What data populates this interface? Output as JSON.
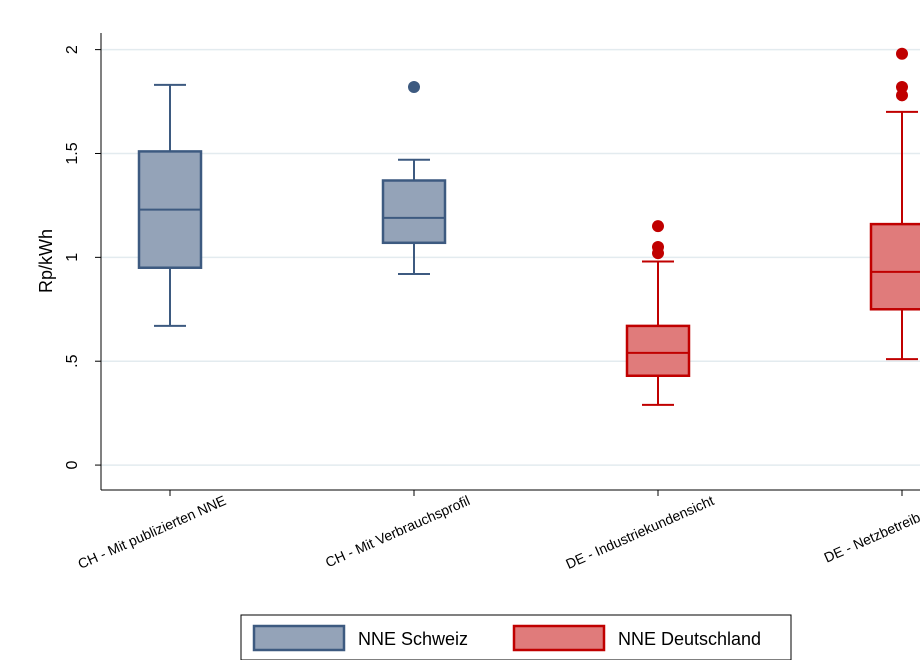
{
  "chart_data": {
    "type": "boxplot",
    "ylabel": "Rp/kWh",
    "xlabel": "",
    "ylim": [
      -0.12,
      2.08
    ],
    "yticks": [
      0,
      0.5,
      1,
      1.5,
      2
    ],
    "ytick_labels": [
      "0",
      ".5",
      "1",
      "1.5",
      "2"
    ],
    "grid": true,
    "legend_position": "bottom",
    "categories": [
      "CH - Mit publizierten NNE",
      "CH - Mit Verbrauchsprofil",
      "DE - Industriekundensicht",
      "DE - Netzbetreibersicht"
    ],
    "series": [
      {
        "name": "NNE Schweiz",
        "fill": "#94a3b8",
        "stroke": "#3d5a80",
        "boxes": [
          {
            "category": "CH - Mit publizierten NNE",
            "whisker_low": 0.67,
            "q1": 0.95,
            "median": 1.23,
            "q3": 1.51,
            "whisker_high": 1.83,
            "outliers": []
          },
          {
            "category": "CH - Mit Verbrauchsprofil",
            "whisker_low": 0.92,
            "q1": 1.07,
            "median": 1.19,
            "q3": 1.37,
            "whisker_high": 1.47,
            "outliers": [
              1.82
            ]
          }
        ]
      },
      {
        "name": "NNE Deutschland",
        "fill": "#e07b7b",
        "stroke": "#c00000",
        "boxes": [
          {
            "category": "DE - Industriekundensicht",
            "whisker_low": 0.29,
            "q1": 0.43,
            "median": 0.54,
            "q3": 0.67,
            "whisker_high": 0.98,
            "outliers": [
              1.02,
              1.05,
              1.15
            ]
          },
          {
            "category": "DE - Netzbetreibersicht",
            "whisker_low": 0.51,
            "q1": 0.75,
            "median": 0.93,
            "q3": 1.16,
            "whisker_high": 1.7,
            "outliers": [
              1.78,
              1.82,
              1.98
            ]
          }
        ]
      }
    ]
  }
}
